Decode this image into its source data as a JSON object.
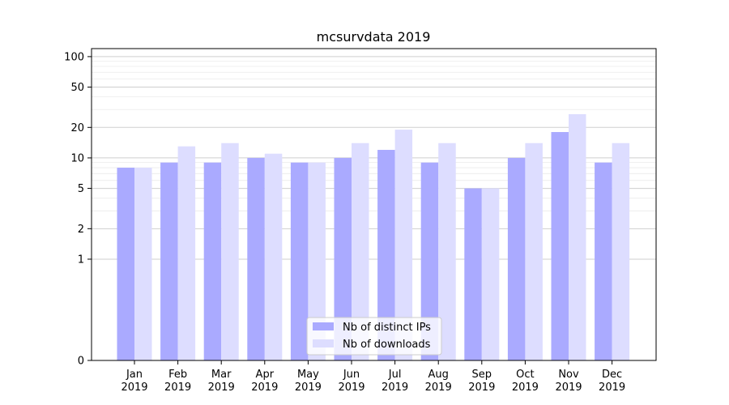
{
  "chart_data": {
    "type": "bar",
    "title": "mcsurvdata 2019",
    "xlabel": "",
    "ylabel": "",
    "scale": "symlog",
    "ylim": [
      0,
      120
    ],
    "yticks": [
      0,
      1,
      2,
      5,
      10,
      20,
      50,
      100
    ],
    "grid": "horizontal",
    "legend_placement": "bottom-center",
    "categories": [
      {
        "month": "Jan",
        "year": "2019"
      },
      {
        "month": "Feb",
        "year": "2019"
      },
      {
        "month": "Mar",
        "year": "2019"
      },
      {
        "month": "Apr",
        "year": "2019"
      },
      {
        "month": "May",
        "year": "2019"
      },
      {
        "month": "Jun",
        "year": "2019"
      },
      {
        "month": "Jul",
        "year": "2019"
      },
      {
        "month": "Aug",
        "year": "2019"
      },
      {
        "month": "Sep",
        "year": "2019"
      },
      {
        "month": "Oct",
        "year": "2019"
      },
      {
        "month": "Nov",
        "year": "2019"
      },
      {
        "month": "Dec",
        "year": "2019"
      }
    ],
    "series": [
      {
        "name": "Nb of distinct IPs",
        "color": "#aaaaff",
        "values": [
          8,
          9,
          9,
          10,
          9,
          10,
          12,
          9,
          5,
          10,
          18,
          9
        ]
      },
      {
        "name": "Nb of downloads",
        "color": "#ddddff",
        "values": [
          8,
          13,
          14,
          11,
          9,
          14,
          19,
          14,
          5,
          14,
          27,
          14
        ]
      }
    ]
  }
}
